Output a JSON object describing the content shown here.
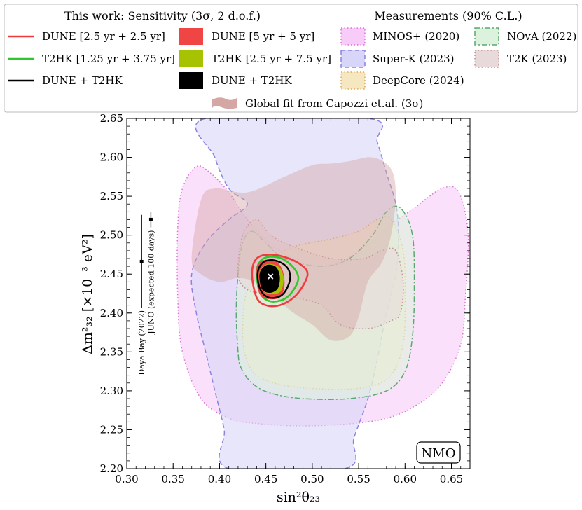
{
  "legend": {
    "sensitivity_title": "This work: Sensitivity (3σ, 2 d.o.f.)",
    "measurements_title": "Measurements (90% C.L.)",
    "global_fit_label": "Global fit from Capozzi et.al. (3σ)",
    "items": [
      {
        "label": "DUNE [2.5 yr + 2.5 yr]",
        "kind": "line",
        "color": "#ef3b3b"
      },
      {
        "label": "T2HK [1.25 yr + 3.75 yr]",
        "kind": "line",
        "color": "#2ec82e"
      },
      {
        "label": "DUNE + T2HK",
        "kind": "line",
        "color": "#000000"
      },
      {
        "label": "DUNE [5 yr + 5 yr]",
        "kind": "fill",
        "color": "#f04545"
      },
      {
        "label": "T2HK [2.5 yr + 7.5 yr]",
        "kind": "fill",
        "color": "#a6c200"
      },
      {
        "label": "DUNE + T2HK",
        "kind": "fill",
        "color": "#000000"
      },
      {
        "label": "MINOS+ (2020)",
        "kind": "box",
        "fill": "#f8ccf8",
        "stroke": "#e070d8",
        "dash": "dot"
      },
      {
        "label": "Super-K (2023)",
        "kind": "box",
        "fill": "#d8d6f8",
        "stroke": "#8a84e0",
        "dash": "dash"
      },
      {
        "label": "DeepCore (2024)",
        "kind": "box",
        "fill": "#f5e8c0",
        "stroke": "#e6a85a",
        "dash": "dot"
      },
      {
        "label": "NOvA (2022)",
        "kind": "box",
        "fill": "#dcf2dc",
        "stroke": "#5aa870",
        "dash": "dashdot"
      },
      {
        "label": "T2K (2023)",
        "kind": "box",
        "fill": "#e8dada",
        "stroke": "#c49090",
        "dash": "dot"
      }
    ]
  },
  "chart_data": {
    "type": "contour",
    "xlabel": "sin²θ₂₃",
    "ylabel": "Δm²₃₂ [×10⁻³ eV²]",
    "xlim": [
      0.3,
      0.67
    ],
    "ylim": [
      2.2,
      2.65
    ],
    "xticks": [
      "0.30",
      "0.35",
      "0.40",
      "0.45",
      "0.50",
      "0.55",
      "0.60",
      "0.65"
    ],
    "yticks": [
      "2.20",
      "2.25",
      "2.30",
      "2.35",
      "2.40",
      "2.45",
      "2.50",
      "2.55",
      "2.60",
      "2.65"
    ],
    "annotation": "NMO",
    "best_fit": {
      "x": 0.455,
      "y": 2.447
    },
    "reference_points": [
      {
        "label": "Daya Bay (2022)",
        "x": 0.316,
        "y": 2.466,
        "ylow": 2.407,
        "yhigh": 2.526
      },
      {
        "label": "JUNO (expected 100 days)",
        "x": 0.326,
        "y": 2.52,
        "ylow": 2.51,
        "yhigh": 2.53
      }
    ],
    "regions": [
      {
        "name": "MINOS+ (2020)",
        "fill": "#f8ccf8",
        "stroke": "#e070d8",
        "dash": "dot",
        "points": [
          [
            0.355,
            2.51
          ],
          [
            0.36,
            2.56
          ],
          [
            0.375,
            2.588
          ],
          [
            0.39,
            2.58
          ],
          [
            0.41,
            2.555
          ],
          [
            0.43,
            2.52
          ],
          [
            0.455,
            2.49
          ],
          [
            0.48,
            2.47
          ],
          [
            0.51,
            2.46
          ],
          [
            0.545,
            2.475
          ],
          [
            0.575,
            2.505
          ],
          [
            0.61,
            2.535
          ],
          [
            0.64,
            2.56
          ],
          [
            0.658,
            2.555
          ],
          [
            0.668,
            2.5
          ],
          [
            0.665,
            2.42
          ],
          [
            0.66,
            2.36
          ],
          [
            0.64,
            2.31
          ],
          [
            0.61,
            2.28
          ],
          [
            0.57,
            2.262
          ],
          [
            0.5,
            2.255
          ],
          [
            0.44,
            2.258
          ],
          [
            0.41,
            2.265
          ],
          [
            0.38,
            2.29
          ],
          [
            0.36,
            2.35
          ],
          [
            0.355,
            2.42
          ]
        ]
      },
      {
        "name": "Super-K (2023)",
        "fill": "#d8d6f8",
        "stroke": "#8a84e0",
        "dash": "dash",
        "points": [
          [
            0.41,
            2.2
          ],
          [
            0.405,
            2.25
          ],
          [
            0.395,
            2.3
          ],
          [
            0.385,
            2.35
          ],
          [
            0.375,
            2.4
          ],
          [
            0.37,
            2.45
          ],
          [
            0.385,
            2.49
          ],
          [
            0.41,
            2.52
          ],
          [
            0.43,
            2.54
          ],
          [
            0.41,
            2.56
          ],
          [
            0.395,
            2.6
          ],
          [
            0.385,
            2.65
          ],
          [
            0.56,
            2.65
          ],
          [
            0.57,
            2.62
          ],
          [
            0.58,
            2.58
          ],
          [
            0.59,
            2.54
          ],
          [
            0.593,
            2.5
          ],
          [
            0.59,
            2.45
          ],
          [
            0.58,
            2.4
          ],
          [
            0.57,
            2.34
          ],
          [
            0.56,
            2.29
          ],
          [
            0.545,
            2.24
          ],
          [
            0.535,
            2.2
          ]
        ]
      },
      {
        "name": "DeepCore (2024)",
        "fill": "#f5e8c0",
        "stroke": "#e6a85a",
        "dash": "dot",
        "points": [
          [
            0.425,
            2.38
          ],
          [
            0.43,
            2.43
          ],
          [
            0.45,
            2.465
          ],
          [
            0.48,
            2.485
          ],
          [
            0.52,
            2.495
          ],
          [
            0.55,
            2.505
          ],
          [
            0.57,
            2.52
          ],
          [
            0.585,
            2.52
          ],
          [
            0.598,
            2.48
          ],
          [
            0.6,
            2.42
          ],
          [
            0.598,
            2.36
          ],
          [
            0.585,
            2.32
          ],
          [
            0.56,
            2.305
          ],
          [
            0.52,
            2.302
          ],
          [
            0.47,
            2.307
          ],
          [
            0.44,
            2.32
          ],
          [
            0.428,
            2.345
          ]
        ]
      },
      {
        "name": "NOvA (2022)",
        "fill": "#dcf2dc",
        "stroke": "#5aa870",
        "dash": "dashdot",
        "points": [
          [
            0.42,
            2.35
          ],
          [
            0.418,
            2.4
          ],
          [
            0.42,
            2.45
          ],
          [
            0.425,
            2.49
          ],
          [
            0.435,
            2.505
          ],
          [
            0.45,
            2.49
          ],
          [
            0.47,
            2.47
          ],
          [
            0.51,
            2.46
          ],
          [
            0.54,
            2.47
          ],
          [
            0.565,
            2.5
          ],
          [
            0.58,
            2.53
          ],
          [
            0.595,
            2.535
          ],
          [
            0.608,
            2.5
          ],
          [
            0.61,
            2.43
          ],
          [
            0.608,
            2.37
          ],
          [
            0.6,
            2.325
          ],
          [
            0.58,
            2.3
          ],
          [
            0.54,
            2.29
          ],
          [
            0.49,
            2.29
          ],
          [
            0.455,
            2.297
          ],
          [
            0.435,
            2.31
          ],
          [
            0.423,
            2.33
          ]
        ]
      },
      {
        "name": "T2K (2023)",
        "fill": "#e8dada",
        "stroke": "#c49090",
        "dash": "dot",
        "points": [
          [
            0.42,
            2.45
          ],
          [
            0.425,
            2.5
          ],
          [
            0.44,
            2.52
          ],
          [
            0.455,
            2.5
          ],
          [
            0.48,
            2.485
          ],
          [
            0.52,
            2.47
          ],
          [
            0.555,
            2.47
          ],
          [
            0.575,
            2.48
          ],
          [
            0.59,
            2.48
          ],
          [
            0.598,
            2.44
          ],
          [
            0.595,
            2.4
          ],
          [
            0.585,
            2.39
          ],
          [
            0.56,
            2.38
          ],
          [
            0.53,
            2.385
          ],
          [
            0.51,
            2.41
          ],
          [
            0.48,
            2.42
          ],
          [
            0.45,
            2.425
          ],
          [
            0.43,
            2.43
          ]
        ]
      },
      {
        "name": "Global fit from Capozzi et.al. (3σ)",
        "fill": "#d4a7a5",
        "stroke": "none",
        "dash": "solid",
        "opacity": 0.45,
        "points": [
          [
            0.37,
            2.47
          ],
          [
            0.38,
            2.545
          ],
          [
            0.395,
            2.56
          ],
          [
            0.43,
            2.555
          ],
          [
            0.47,
            2.575
          ],
          [
            0.5,
            2.59
          ],
          [
            0.52,
            2.592
          ],
          [
            0.54,
            2.595
          ],
          [
            0.565,
            2.6
          ],
          [
            0.585,
            2.585
          ],
          [
            0.59,
            2.55
          ],
          [
            0.585,
            2.5
          ],
          [
            0.575,
            2.465
          ],
          [
            0.56,
            2.44
          ],
          [
            0.55,
            2.395
          ],
          [
            0.54,
            2.37
          ],
          [
            0.52,
            2.365
          ],
          [
            0.5,
            2.385
          ],
          [
            0.48,
            2.4
          ],
          [
            0.46,
            2.42
          ],
          [
            0.45,
            2.43
          ],
          [
            0.44,
            2.44
          ],
          [
            0.42,
            2.445
          ],
          [
            0.4,
            2.44
          ],
          [
            0.38,
            2.45
          ]
        ]
      },
      {
        "name": "DUNE [2.5 yr + 2.5 yr]",
        "fill": "none",
        "stroke": "#ef3b3b",
        "dash": "solid",
        "width": 2.6,
        "points": [
          [
            0.435,
            2.45
          ],
          [
            0.44,
            2.42
          ],
          [
            0.45,
            2.41
          ],
          [
            0.465,
            2.41
          ],
          [
            0.48,
            2.42
          ],
          [
            0.49,
            2.435
          ],
          [
            0.495,
            2.45
          ],
          [
            0.49,
            2.46
          ],
          [
            0.475,
            2.47
          ],
          [
            0.455,
            2.475
          ],
          [
            0.44,
            2.47
          ]
        ]
      },
      {
        "name": "T2HK [1.25 yr + 3.75 yr]",
        "fill": "none",
        "stroke": "#2ec82e",
        "dash": "solid",
        "width": 2.6,
        "points": [
          [
            0.44,
            2.45
          ],
          [
            0.444,
            2.425
          ],
          [
            0.455,
            2.415
          ],
          [
            0.47,
            2.418
          ],
          [
            0.48,
            2.43
          ],
          [
            0.485,
            2.445
          ],
          [
            0.48,
            2.458
          ],
          [
            0.467,
            2.47
          ],
          [
            0.452,
            2.472
          ],
          [
            0.443,
            2.465
          ]
        ]
      },
      {
        "name": "DUNE [5 yr + 5 yr]",
        "fill": "#f04545",
        "stroke": "none",
        "dash": "solid",
        "points": [
          [
            0.44,
            2.45
          ],
          [
            0.443,
            2.425
          ],
          [
            0.452,
            2.418
          ],
          [
            0.465,
            2.42
          ],
          [
            0.47,
            2.435
          ],
          [
            0.468,
            2.455
          ],
          [
            0.46,
            2.467
          ],
          [
            0.448,
            2.468
          ],
          [
            0.441,
            2.462
          ]
        ]
      },
      {
        "name": "T2HK [2.5 yr + 7.5 yr]",
        "fill": "#a6c200",
        "stroke": "none",
        "dash": "solid",
        "points": [
          [
            0.443,
            2.45
          ],
          [
            0.446,
            2.43
          ],
          [
            0.455,
            2.424
          ],
          [
            0.466,
            2.428
          ],
          [
            0.469,
            2.445
          ],
          [
            0.465,
            2.458
          ],
          [
            0.455,
            2.463
          ],
          [
            0.447,
            2.46
          ]
        ]
      },
      {
        "name": "DUNE + T2HK",
        "fill": "#000000",
        "stroke": "none",
        "dash": "solid",
        "points": [
          [
            0.443,
            2.446
          ],
          [
            0.446,
            2.43
          ],
          [
            0.455,
            2.426
          ],
          [
            0.463,
            2.432
          ],
          [
            0.465,
            2.447
          ],
          [
            0.461,
            2.459
          ],
          [
            0.452,
            2.462
          ],
          [
            0.445,
            2.456
          ]
        ]
      },
      {
        "name": "DUNE + T2HK",
        "fill": "none",
        "stroke": "#000000",
        "dash": "solid",
        "width": 2.4,
        "points": [
          [
            0.441,
            2.45
          ],
          [
            0.444,
            2.43
          ],
          [
            0.453,
            2.42
          ],
          [
            0.466,
            2.422
          ],
          [
            0.474,
            2.435
          ],
          [
            0.476,
            2.45
          ],
          [
            0.47,
            2.462
          ],
          [
            0.457,
            2.468
          ],
          [
            0.446,
            2.464
          ]
        ]
      }
    ]
  }
}
